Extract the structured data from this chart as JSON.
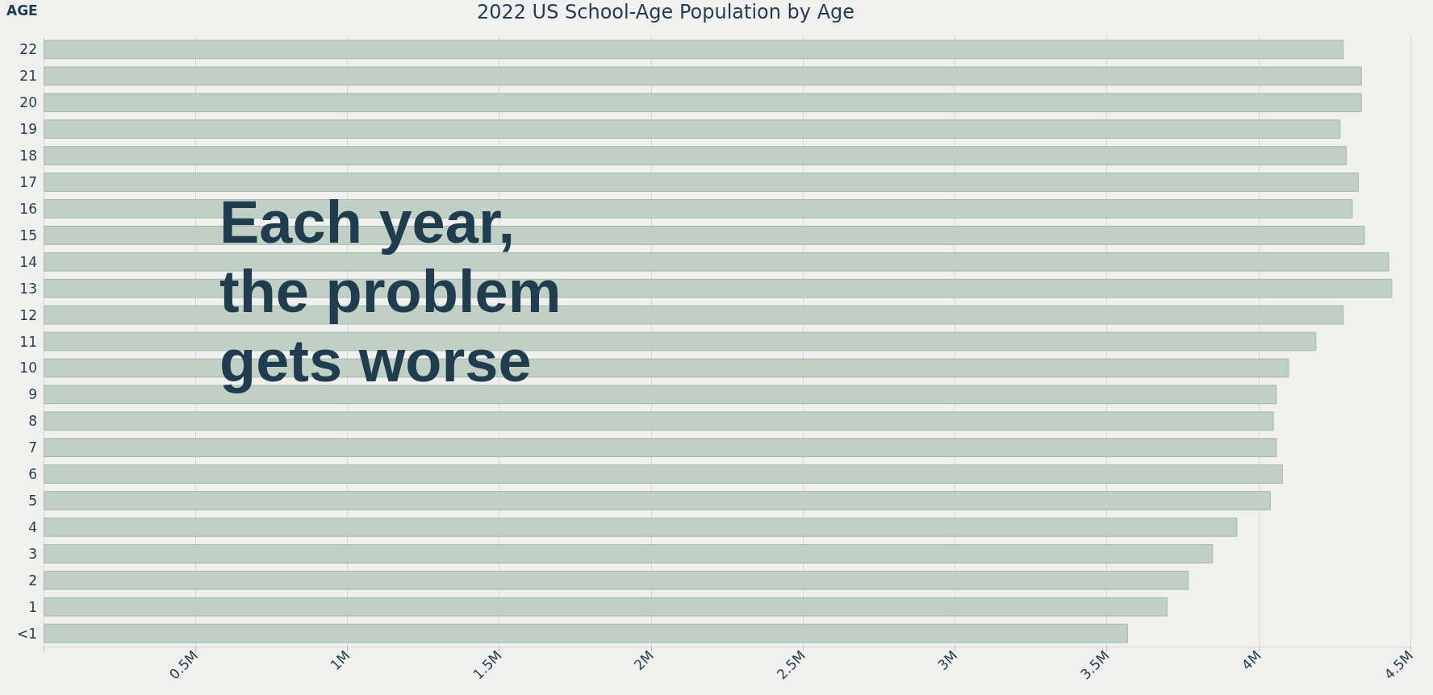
{
  "chart_data": {
    "type": "bar",
    "orientation": "horizontal",
    "title": "2022 US School-Age Population by Age",
    "ylabel": "AGE",
    "categories": [
      "22",
      "21",
      "20",
      "19",
      "18",
      "17",
      "16",
      "15",
      "14",
      "13",
      "12",
      "11",
      "10",
      "9",
      "8",
      "7",
      "6",
      "5",
      "4",
      "3",
      "2",
      "1",
      "<1"
    ],
    "values": [
      4.28,
      4.34,
      4.34,
      4.27,
      4.29,
      4.33,
      4.31,
      4.35,
      4.43,
      4.44,
      4.28,
      4.19,
      4.1,
      4.06,
      4.05,
      4.06,
      4.08,
      4.04,
      3.93,
      3.85,
      3.77,
      3.7,
      3.57
    ],
    "color": "#c0d0c5",
    "xlim": [
      0,
      4.5
    ],
    "xticks": [
      {
        "value": 0,
        "label": null
      },
      {
        "value": 0.5,
        "label": "0.5M"
      },
      {
        "value": 1,
        "label": "1M"
      },
      {
        "value": 1.5,
        "label": "1.5M"
      },
      {
        "value": 2,
        "label": "2M"
      },
      {
        "value": 2.5,
        "label": "2.5M"
      },
      {
        "value": 3,
        "label": "3M"
      },
      {
        "value": 3.5,
        "label": "3.5M"
      },
      {
        "value": 4,
        "label": "4M"
      },
      {
        "value": 4.5,
        "label": "4.5M"
      }
    ],
    "grid": "x",
    "annotations": [
      "Each year,\nthe problem\ngets worse"
    ]
  }
}
